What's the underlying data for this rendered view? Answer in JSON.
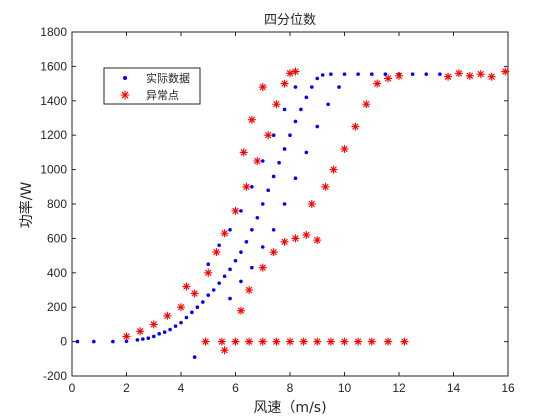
{
  "chart_data": {
    "type": "scatter",
    "title": "四分位数",
    "xlabel": "风速（m/s)",
    "ylabel": "功率/W",
    "xlim": [
      0,
      16
    ],
    "ylim": [
      -200,
      1800
    ],
    "xticks": [
      0,
      2,
      4,
      6,
      8,
      10,
      12,
      14,
      16
    ],
    "yticks": [
      -200,
      0,
      200,
      400,
      600,
      800,
      1000,
      1200,
      1400,
      1600,
      1800
    ],
    "grid": false,
    "legend_position": "top-left",
    "series": [
      {
        "name": "实际数据",
        "marker": "dot",
        "color": "#0000ff",
        "points": [
          [
            0.2,
            0
          ],
          [
            0.8,
            0
          ],
          [
            1.5,
            0
          ],
          [
            2.0,
            2
          ],
          [
            2.4,
            10
          ],
          [
            2.6,
            15
          ],
          [
            2.8,
            20
          ],
          [
            3.0,
            30
          ],
          [
            3.2,
            45
          ],
          [
            3.4,
            55
          ],
          [
            3.6,
            70
          ],
          [
            3.8,
            90
          ],
          [
            4.0,
            110
          ],
          [
            4.2,
            140
          ],
          [
            4.4,
            170
          ],
          [
            4.6,
            200
          ],
          [
            4.5,
            -90
          ],
          [
            4.8,
            230
          ],
          [
            5.0,
            270
          ],
          [
            5.2,
            300
          ],
          [
            5.4,
            340
          ],
          [
            5.6,
            380
          ],
          [
            5.8,
            420
          ],
          [
            6.0,
            470
          ],
          [
            6.2,
            520
          ],
          [
            6.4,
            580
          ],
          [
            6.6,
            650
          ],
          [
            6.8,
            720
          ],
          [
            7.0,
            800
          ],
          [
            7.2,
            880
          ],
          [
            7.4,
            960
          ],
          [
            7.6,
            1040
          ],
          [
            7.8,
            1120
          ],
          [
            8.0,
            1200
          ],
          [
            8.2,
            1280
          ],
          [
            8.4,
            1350
          ],
          [
            8.6,
            1420
          ],
          [
            8.8,
            1480
          ],
          [
            9.0,
            1530
          ],
          [
            9.2,
            1550
          ],
          [
            9.5,
            1555
          ],
          [
            10.0,
            1555
          ],
          [
            10.5,
            1555
          ],
          [
            11.0,
            1555
          ],
          [
            11.5,
            1555
          ],
          [
            12.0,
            1555
          ],
          [
            12.5,
            1555
          ],
          [
            13.0,
            1555
          ],
          [
            13.5,
            1555
          ],
          [
            5.8,
            250
          ],
          [
            6.2,
            350
          ],
          [
            6.6,
            430
          ],
          [
            7.0,
            550
          ],
          [
            7.4,
            650
          ],
          [
            7.8,
            800
          ],
          [
            8.2,
            950
          ],
          [
            8.6,
            1100
          ],
          [
            9.0,
            1250
          ],
          [
            9.4,
            1380
          ],
          [
            9.8,
            1480
          ],
          [
            5.0,
            450
          ],
          [
            5.4,
            560
          ],
          [
            5.8,
            650
          ],
          [
            6.2,
            760
          ],
          [
            6.6,
            900
          ],
          [
            7.0,
            1050
          ],
          [
            7.4,
            1200
          ],
          [
            7.8,
            1350
          ],
          [
            8.2,
            1480
          ]
        ]
      },
      {
        "name": "异常点",
        "marker": "asterisk",
        "color": "#ff0000",
        "points": [
          [
            4.9,
            0
          ],
          [
            5.5,
            0
          ],
          [
            6.0,
            0
          ],
          [
            6.5,
            0
          ],
          [
            7.0,
            0
          ],
          [
            7.5,
            0
          ],
          [
            8.0,
            0
          ],
          [
            8.5,
            0
          ],
          [
            9.0,
            0
          ],
          [
            9.5,
            0
          ],
          [
            10.0,
            0
          ],
          [
            10.5,
            0
          ],
          [
            11.0,
            0
          ],
          [
            11.6,
            0
          ],
          [
            12.2,
            0
          ],
          [
            5.6,
            -50
          ],
          [
            2.0,
            30
          ],
          [
            2.5,
            60
          ],
          [
            3.0,
            100
          ],
          [
            3.5,
            150
          ],
          [
            4.0,
            200
          ],
          [
            4.5,
            280
          ],
          [
            4.2,
            320
          ],
          [
            5.0,
            400
          ],
          [
            5.3,
            520
          ],
          [
            5.6,
            630
          ],
          [
            6.0,
            760
          ],
          [
            6.4,
            900
          ],
          [
            6.8,
            1050
          ],
          [
            7.2,
            1200
          ],
          [
            7.5,
            1380
          ],
          [
            7.8,
            1500
          ],
          [
            8.0,
            1560
          ],
          [
            6.6,
            1290
          ],
          [
            6.3,
            1100
          ],
          [
            7.0,
            1480
          ],
          [
            8.2,
            1570
          ],
          [
            6.2,
            180
          ],
          [
            6.5,
            300
          ],
          [
            7.0,
            430
          ],
          [
            7.4,
            520
          ],
          [
            7.8,
            580
          ],
          [
            8.2,
            600
          ],
          [
            8.6,
            620
          ],
          [
            9.0,
            590
          ],
          [
            8.8,
            800
          ],
          [
            9.3,
            900
          ],
          [
            9.6,
            1000
          ],
          [
            10.0,
            1120
          ],
          [
            10.4,
            1250
          ],
          [
            10.8,
            1380
          ],
          [
            11.2,
            1500
          ],
          [
            11.6,
            1530
          ],
          [
            12.0,
            1545
          ],
          [
            13.8,
            1540
          ],
          [
            14.2,
            1560
          ],
          [
            14.6,
            1545
          ],
          [
            15.0,
            1555
          ],
          [
            15.4,
            1540
          ],
          [
            15.9,
            1570
          ]
        ]
      }
    ]
  }
}
